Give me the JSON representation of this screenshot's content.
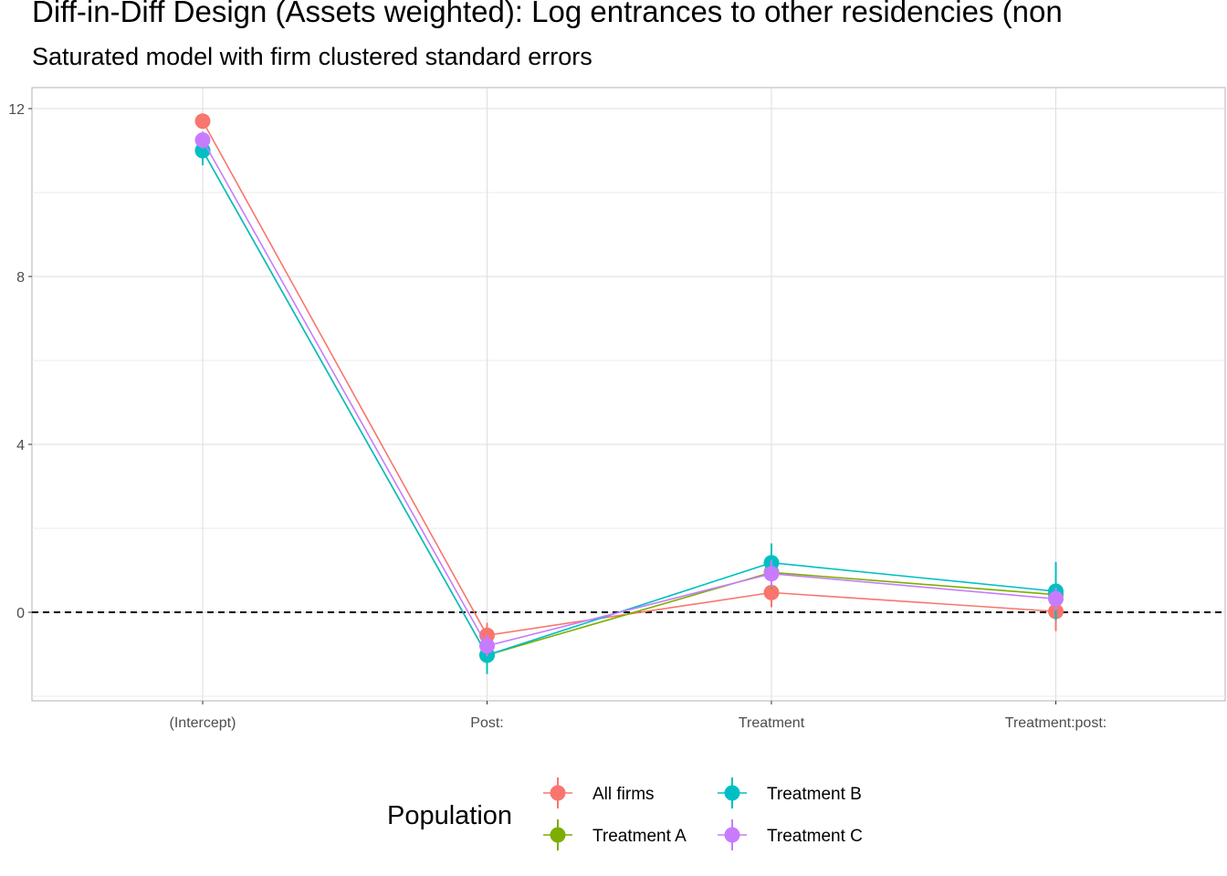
{
  "chart_data": {
    "type": "line",
    "title": "Diff-in-Diff Design (Assets weighted): Log entrances to other residencies (non",
    "subtitle": "Saturated model with firm clustered standard errors",
    "xlabel": "",
    "ylabel": "",
    "categories": [
      "(Intercept)",
      "Post:",
      "Treatment",
      "Treatment:post:"
    ],
    "ylim": [
      -2.1,
      12.5
    ],
    "yticks": [
      0,
      4,
      8,
      12
    ],
    "grid": true,
    "reference_line": {
      "y": 0,
      "style": "dashed"
    },
    "legend": {
      "title": "Population",
      "position": "bottom"
    },
    "series": [
      {
        "name": "All firms",
        "color": "#F8766D",
        "values": [
          11.7,
          -0.55,
          0.47,
          0.02
        ],
        "lower": [
          11.55,
          -0.85,
          0.12,
          -0.45
        ],
        "upper": [
          11.85,
          -0.25,
          0.82,
          0.49
        ]
      },
      {
        "name": "Treatment A",
        "color": "#7CAE00",
        "values": [
          11.0,
          -1.02,
          0.95,
          0.42
        ],
        "lower": [
          10.75,
          -1.32,
          0.55,
          0.1
        ],
        "upper": [
          11.25,
          -0.72,
          1.35,
          0.74
        ]
      },
      {
        "name": "Treatment B",
        "color": "#00BFC4",
        "values": [
          11.0,
          -1.02,
          1.18,
          0.5
        ],
        "lower": [
          10.65,
          -1.47,
          0.72,
          -0.2
        ],
        "upper": [
          11.35,
          -0.57,
          1.64,
          1.2
        ]
      },
      {
        "name": "Treatment C",
        "color": "#C77CFF",
        "values": [
          11.25,
          -0.8,
          0.92,
          0.32
        ],
        "lower": [
          11.05,
          -1.05,
          0.6,
          0.05
        ],
        "upper": [
          11.45,
          -0.55,
          1.24,
          0.59
        ]
      }
    ]
  }
}
